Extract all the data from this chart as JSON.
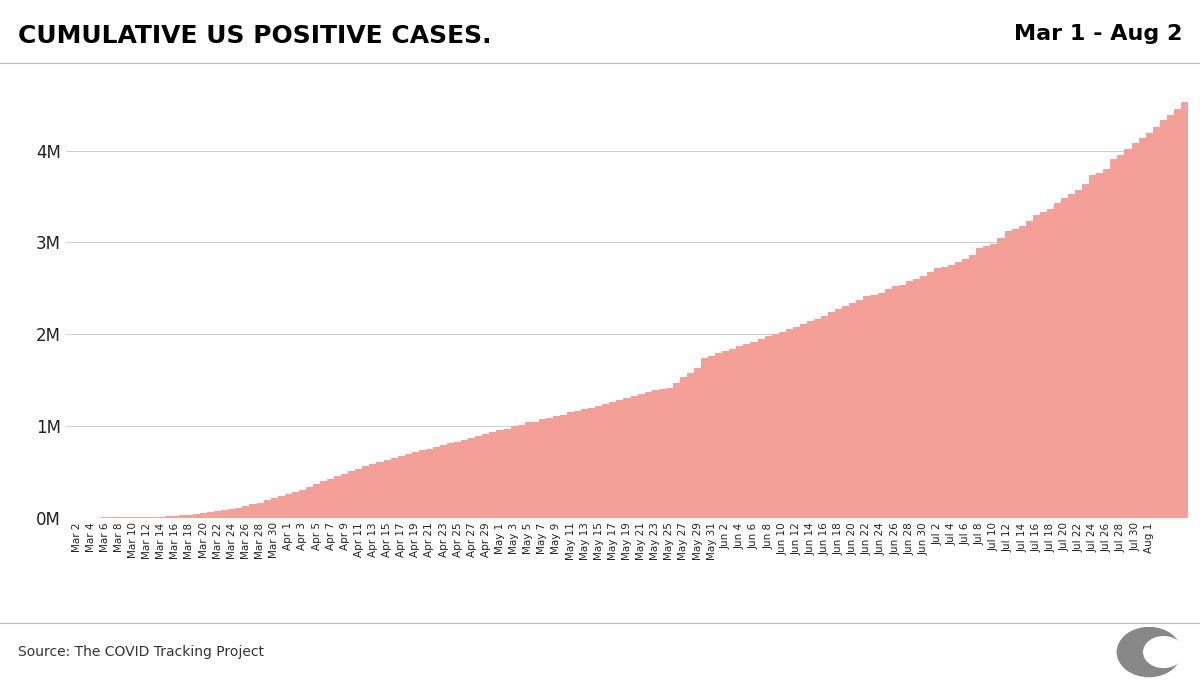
{
  "title": "CUMULATIVE US POSITIVE CASES.",
  "subtitle": "Mar 1 - Aug 2",
  "source": "Source: The COVID Tracking Project",
  "bar_color": "#f4a099",
  "background_color": "#ffffff",
  "yticks": [
    0,
    1000000,
    2000000,
    3000000,
    4000000
  ],
  "ytick_labels": [
    "0M",
    "1M",
    "2M",
    "3M",
    "4M"
  ],
  "ylim": [
    0,
    4900000
  ],
  "title_fontsize": 18,
  "subtitle_fontsize": 16,
  "values": [
    89,
    118,
    213,
    341,
    500,
    800,
    1210,
    1710,
    2825,
    3920,
    4661,
    6421,
    7087,
    10442,
    13677,
    18897,
    24583,
    33276,
    43449,
    53740,
    65778,
    75509,
    83836,
    93538,
    104126,
    120978,
    143055,
    163843,
    189633,
    213372,
    234562,
    255108,
    277161,
    302652,
    336673,
    368449,
    395011,
    419974,
    452781,
    479674,
    503594,
    528961,
    557590,
    584501,
    609447,
    631190,
    652867,
    672155,
    691008,
    712202,
    733197,
    752840,
    773785,
    791986,
    810000,
    828441,
    843000,
    862553,
    890000,
    907049,
    932000,
    953323,
    970000,
    993267,
    1010000,
    1037932,
    1047000,
    1072114,
    1082000,
    1104580,
    1118000,
    1145657,
    1157000,
    1179020,
    1198000,
    1218903,
    1240000,
    1261226,
    1280000,
    1301081,
    1323000,
    1346791,
    1369000,
    1392840,
    1401000,
    1416682,
    1470380,
    1527664,
    1572858,
    1627626,
    1738000,
    1764217,
    1790000,
    1820901,
    1836000,
    1869172,
    1896000,
    1919049,
    1946000,
    1975488,
    2000000,
    2023422,
    2052000,
    2082594,
    2113000,
    2143671,
    2169000,
    2200933,
    2241000,
    2277174,
    2308000,
    2339371,
    2374000,
    2414227,
    2431000,
    2449146,
    2488000,
    2519329,
    2540000,
    2573642,
    2601000,
    2632825,
    2680000,
    2718993,
    2730000,
    2750203,
    2789000,
    2823073,
    2867000,
    2938439,
    2960000,
    2986174,
    3050000,
    3120046,
    3143000,
    3180189,
    3230000,
    3294028,
    3331000,
    3360890,
    3430000,
    3481912,
    3530000,
    3566776,
    3640000,
    3734812,
    3754000,
    3795277,
    3907000,
    3950098,
    4017000,
    4080488,
    4140000,
    4196876,
    4253000,
    4338130,
    4390000,
    4454990,
    4530000
  ],
  "tick_dates": [
    "Mar 2",
    "Mar 4",
    "Mar 6",
    "Mar 8",
    "Mar 10",
    "Mar 12",
    "Mar 14",
    "Mar 16",
    "Mar 18",
    "Mar 20",
    "Mar 22",
    "Mar 24",
    "Mar 26",
    "Mar 28",
    "Mar 30",
    "Apr 1",
    "Apr 3",
    "Apr 5",
    "Apr 7",
    "Apr 9",
    "Apr 11",
    "Apr 13",
    "Apr 15",
    "Apr 17",
    "Apr 19",
    "Apr 21",
    "Apr 23",
    "Apr 25",
    "Apr 27",
    "Apr 29",
    "May 1",
    "May 3",
    "May 5",
    "May 7",
    "May 9",
    "May 11",
    "May 13",
    "May 15",
    "May 17",
    "May 19",
    "May 21",
    "May 23",
    "May 25",
    "May 27",
    "May 29",
    "May 31",
    "Jun 2",
    "Jun 4",
    "Jun 6",
    "Jun 8",
    "Jun 10",
    "Jun 12",
    "Jun 14",
    "Jun 16",
    "Jun 18",
    "Jun 20",
    "Jun 22",
    "Jun 24",
    "Jun 26",
    "Jun 28",
    "Jun 30",
    "Jul 2",
    "Jul 4",
    "Jul 6",
    "Jul 8",
    "Jul 10",
    "Jul 12",
    "Jul 14",
    "Jul 16",
    "Jul 18",
    "Jul 20",
    "Jul 22",
    "Jul 24",
    "Jul 26",
    "Jul 28",
    "Jul 30",
    "Aug 1"
  ],
  "tick_positions": [
    1,
    3,
    5,
    7,
    9,
    11,
    13,
    15,
    17,
    19,
    21,
    23,
    25,
    27,
    29,
    31,
    33,
    35,
    37,
    39,
    41,
    43,
    45,
    47,
    49,
    51,
    53,
    55,
    57,
    59,
    61,
    63,
    65,
    67,
    69,
    71,
    73,
    75,
    77,
    79,
    81,
    83,
    85,
    87,
    89,
    91,
    93,
    95,
    97,
    99,
    101,
    103,
    105,
    107,
    109,
    111,
    113,
    115,
    117,
    119,
    121,
    123,
    125,
    127,
    129,
    131,
    133,
    135,
    137,
    139,
    141,
    143,
    145,
    147,
    149,
    151,
    153
  ]
}
